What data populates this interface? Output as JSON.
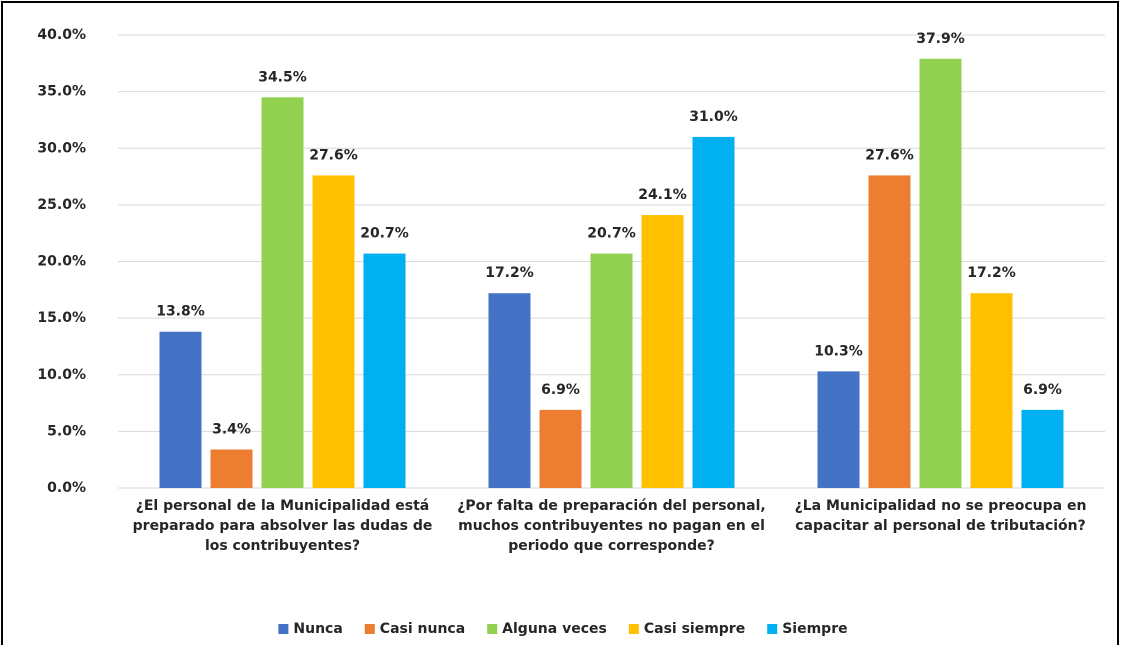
{
  "chart_data": {
    "type": "bar",
    "categories": [
      "¿El personal de la Municipalidad está preparado para absolver las dudas de los contribuyentes?",
      "¿Por falta de preparación del personal, muchos contribuyentes no pagan en el periodo que corresponde?",
      "¿La Municipalidad no se preocupa en capacitar al personal de tributación?"
    ],
    "series": [
      {
        "name": "Nunca",
        "color": "#4472c4",
        "values": [
          13.8,
          17.2,
          10.3
        ],
        "value_labels": [
          "13.8%",
          "17.2%",
          "10.3%"
        ]
      },
      {
        "name": "Casi nunca",
        "color": "#ed7d31",
        "values": [
          3.4,
          6.9,
          27.6
        ],
        "value_labels": [
          "3.4%",
          "6.9%",
          "27.6%"
        ]
      },
      {
        "name": "Alguna veces",
        "color": "#92d050",
        "values": [
          34.5,
          20.7,
          37.9
        ],
        "value_labels": [
          "34.5%",
          "20.7%",
          "37.9%"
        ]
      },
      {
        "name": "Casi siempre",
        "color": "#ffc000",
        "values": [
          27.6,
          24.1,
          17.2
        ],
        "value_labels": [
          "27.6%",
          "24.1%",
          "17.2%"
        ]
      },
      {
        "name": "Siempre",
        "color": "#00b0f0",
        "values": [
          20.7,
          31.0,
          6.9
        ],
        "value_labels": [
          "20.7%",
          "31.0%",
          "6.9%"
        ]
      }
    ],
    "ylim": [
      0,
      40
    ],
    "yticks": [
      {
        "value": 0,
        "label": "0.0%"
      },
      {
        "value": 5,
        "label": "5.0%"
      },
      {
        "value": 10,
        "label": "10.0%"
      },
      {
        "value": 15,
        "label": "15.0%"
      },
      {
        "value": 20,
        "label": "20.0%"
      },
      {
        "value": 25,
        "label": "25.0%"
      },
      {
        "value": 30,
        "label": "30.0%"
      },
      {
        "value": 35,
        "label": "35.0%"
      },
      {
        "value": 40,
        "label": "40.0%"
      }
    ],
    "grid": true,
    "legend": "bottom"
  }
}
